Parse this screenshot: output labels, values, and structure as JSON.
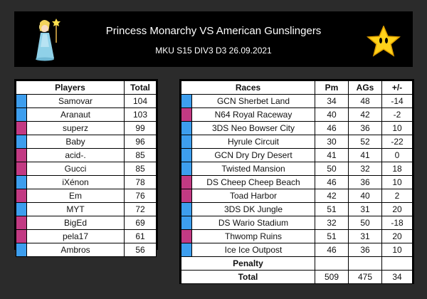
{
  "header": {
    "title": "Princess Monarchy VS American Gunslingers",
    "subtitle": "MKU S15 DIV3 D3 26.09.2021",
    "left_icon": "rosalina-icon",
    "right_icon": "power-star-icon"
  },
  "colors": {
    "team_blue": "#3d9eee",
    "team_pink": "#c23a83"
  },
  "players_table": {
    "headers": [
      "Players",
      "Total"
    ],
    "rows": [
      {
        "team": "blue",
        "name": "Samovar",
        "total": "104"
      },
      {
        "team": "blue",
        "name": "Aranaut",
        "total": "103"
      },
      {
        "team": "pink",
        "name": "superz",
        "total": "99"
      },
      {
        "team": "blue",
        "name": "Baby",
        "total": "96"
      },
      {
        "team": "pink",
        "name": "acid-.",
        "total": "85"
      },
      {
        "team": "pink",
        "name": "Gucci",
        "total": "85"
      },
      {
        "team": "blue",
        "name": "iXénon",
        "total": "78"
      },
      {
        "team": "pink",
        "name": "Em",
        "total": "76"
      },
      {
        "team": "blue",
        "name": "MYT",
        "total": "72"
      },
      {
        "team": "pink",
        "name": "BigEd",
        "total": "69"
      },
      {
        "team": "pink",
        "name": "pela17",
        "total": "61"
      },
      {
        "team": "blue",
        "name": "Ambros",
        "total": "56"
      }
    ]
  },
  "races_table": {
    "headers": [
      "Races",
      "Pm",
      "AGs",
      "+/-"
    ],
    "rows": [
      {
        "team": "blue",
        "race": "GCN Sherbet Land",
        "pm": "34",
        "ags": "48",
        "diff": "-14"
      },
      {
        "team": "pink",
        "race": "N64 Royal Raceway",
        "pm": "40",
        "ags": "42",
        "diff": "-2"
      },
      {
        "team": "blue",
        "race": "3DS Neo Bowser City",
        "pm": "46",
        "ags": "36",
        "diff": "10"
      },
      {
        "team": "blue",
        "race": "Hyrule Circuit",
        "pm": "30",
        "ags": "52",
        "diff": "-22"
      },
      {
        "team": "blue",
        "race": "GCN Dry Dry Desert",
        "pm": "41",
        "ags": "41",
        "diff": "0"
      },
      {
        "team": "blue",
        "race": "Twisted Mansion",
        "pm": "50",
        "ags": "32",
        "diff": "18"
      },
      {
        "team": "pink",
        "race": "DS Cheep Cheep Beach",
        "pm": "46",
        "ags": "36",
        "diff": "10"
      },
      {
        "team": "pink",
        "race": "Toad Harbor",
        "pm": "42",
        "ags": "40",
        "diff": "2"
      },
      {
        "team": "blue",
        "race": "3DS DK Jungle",
        "pm": "51",
        "ags": "31",
        "diff": "20"
      },
      {
        "team": "blue",
        "race": "DS Wario Stadium",
        "pm": "32",
        "ags": "50",
        "diff": "-18"
      },
      {
        "team": "pink",
        "race": "Thwomp Ruins",
        "pm": "51",
        "ags": "31",
        "diff": "20"
      },
      {
        "team": "blue",
        "race": "Ice Ice Outpost",
        "pm": "46",
        "ags": "36",
        "diff": "10"
      }
    ],
    "penalty_label": "Penalty",
    "total_label": "Total",
    "total_pm": "509",
    "total_ags": "475",
    "total_diff": "34"
  }
}
